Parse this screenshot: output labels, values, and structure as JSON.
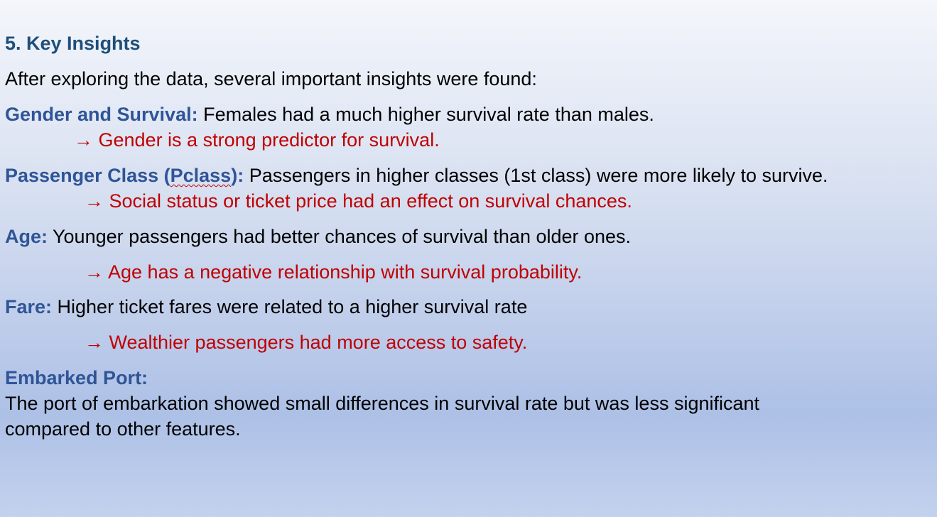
{
  "title": "5. Key Insights",
  "intro": "After exploring the data, several important insights were found:",
  "insights": [
    {
      "label": "Gender and Survival:",
      "text": " Females had a much higher survival rate than males.",
      "conclusion": "→ Gender is a strong predictor for survival."
    },
    {
      "label_pre": "Passenger Class (",
      "label_word": "Pclass",
      "label_post": "):",
      "text": " Passengers in higher classes (1st class) were more likely to survive.",
      "conclusion": "→ Social status or ticket price had an effect on survival chances."
    },
    {
      "label": "Age:",
      "text": " Younger passengers had better chances of survival than older ones.",
      "conclusion": "→ Age has a negative relationship with survival probability."
    },
    {
      "label": "Fare:",
      "text": " Higher ticket fares were related to a higher survival rate",
      "conclusion": "→ Wealthier passengers had more access to safety."
    },
    {
      "label": "Embarked Port:",
      "text_line1": "The port of embarkation showed small differences in survival rate but was less significant",
      "text_line2": "compared to other features."
    }
  ]
}
